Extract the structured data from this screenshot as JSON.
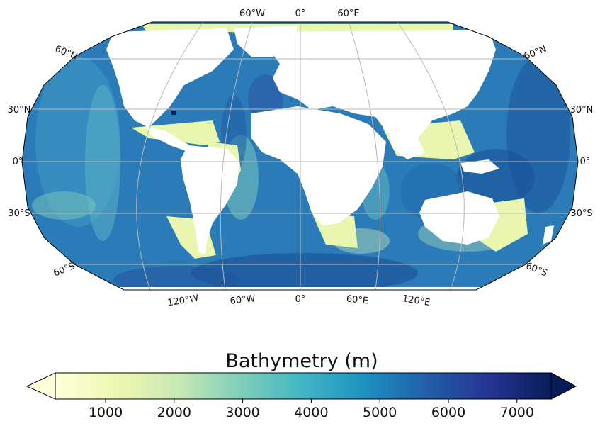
{
  "map": {
    "projection": "Robinson",
    "central_longitude": "0",
    "gridline_color": "#b8b8b8",
    "land_color": "#ffffff",
    "lon_labels_top": [
      "60°W",
      "0°",
      "60°E"
    ],
    "lon_labels_bottom": [
      "120°W",
      "60°W",
      "0°",
      "60°E",
      "120°E"
    ],
    "lat_labels_left": [
      "60°N",
      "30°N",
      "0°",
      "30°S",
      "60°S"
    ],
    "lat_labels_right": [
      "60°N",
      "30°N",
      "0°",
      "30°S",
      "60°S"
    ]
  },
  "colorbar": {
    "title": "Bathymetry (m)",
    "ticks": [
      "1000",
      "2000",
      "3000",
      "4000",
      "5000",
      "6000",
      "7000"
    ],
    "colormap": "YlGnBu",
    "colors": [
      "#ffffd9",
      "#edf8b1",
      "#c7e9b4",
      "#7fcdbb",
      "#41b6c4",
      "#1d91c0",
      "#225ea8",
      "#253494",
      "#081d58"
    ],
    "extend": "both"
  }
}
